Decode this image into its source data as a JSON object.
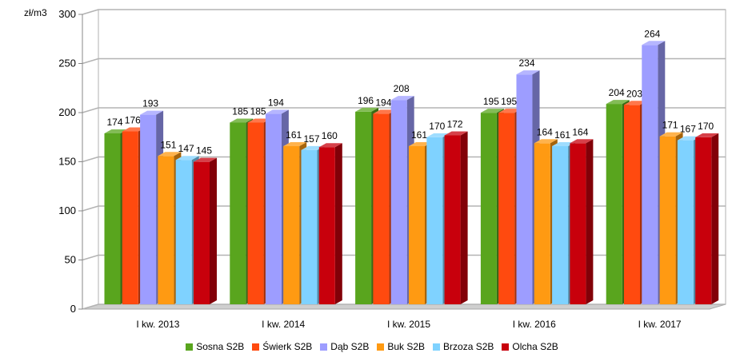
{
  "chart_data": {
    "type": "bar",
    "ylabel": "zł/m3",
    "ylim": [
      0,
      300
    ],
    "yticks": [
      0,
      50,
      100,
      150,
      200,
      250,
      300
    ],
    "grid": true,
    "legend_position": "bottom",
    "categories": [
      "I kw. 2013",
      "I kw. 2014",
      "I kw. 2015",
      "I kw. 2016",
      "I kw. 2017"
    ],
    "series": [
      {
        "name": "Sosna S2B",
        "color": "#59a51e",
        "values": [
          174,
          185,
          196,
          195,
          204
        ]
      },
      {
        "name": "Świerk S2B",
        "color": "#ff4a0f",
        "values": [
          176,
          185,
          194,
          195,
          203
        ]
      },
      {
        "name": "Dąb S2B",
        "color": "#9d9dff",
        "values": [
          193,
          194,
          208,
          234,
          264
        ]
      },
      {
        "name": "Buk S2B",
        "color": "#ff9a12",
        "values": [
          151,
          161,
          161,
          164,
          171
        ]
      },
      {
        "name": "Brzoza S2B",
        "color": "#7fd2ff",
        "values": [
          147,
          157,
          170,
          161,
          167
        ]
      },
      {
        "name": "Olcha S2B",
        "color": "#c8000c",
        "values": [
          145,
          160,
          172,
          164,
          170
        ]
      }
    ]
  }
}
